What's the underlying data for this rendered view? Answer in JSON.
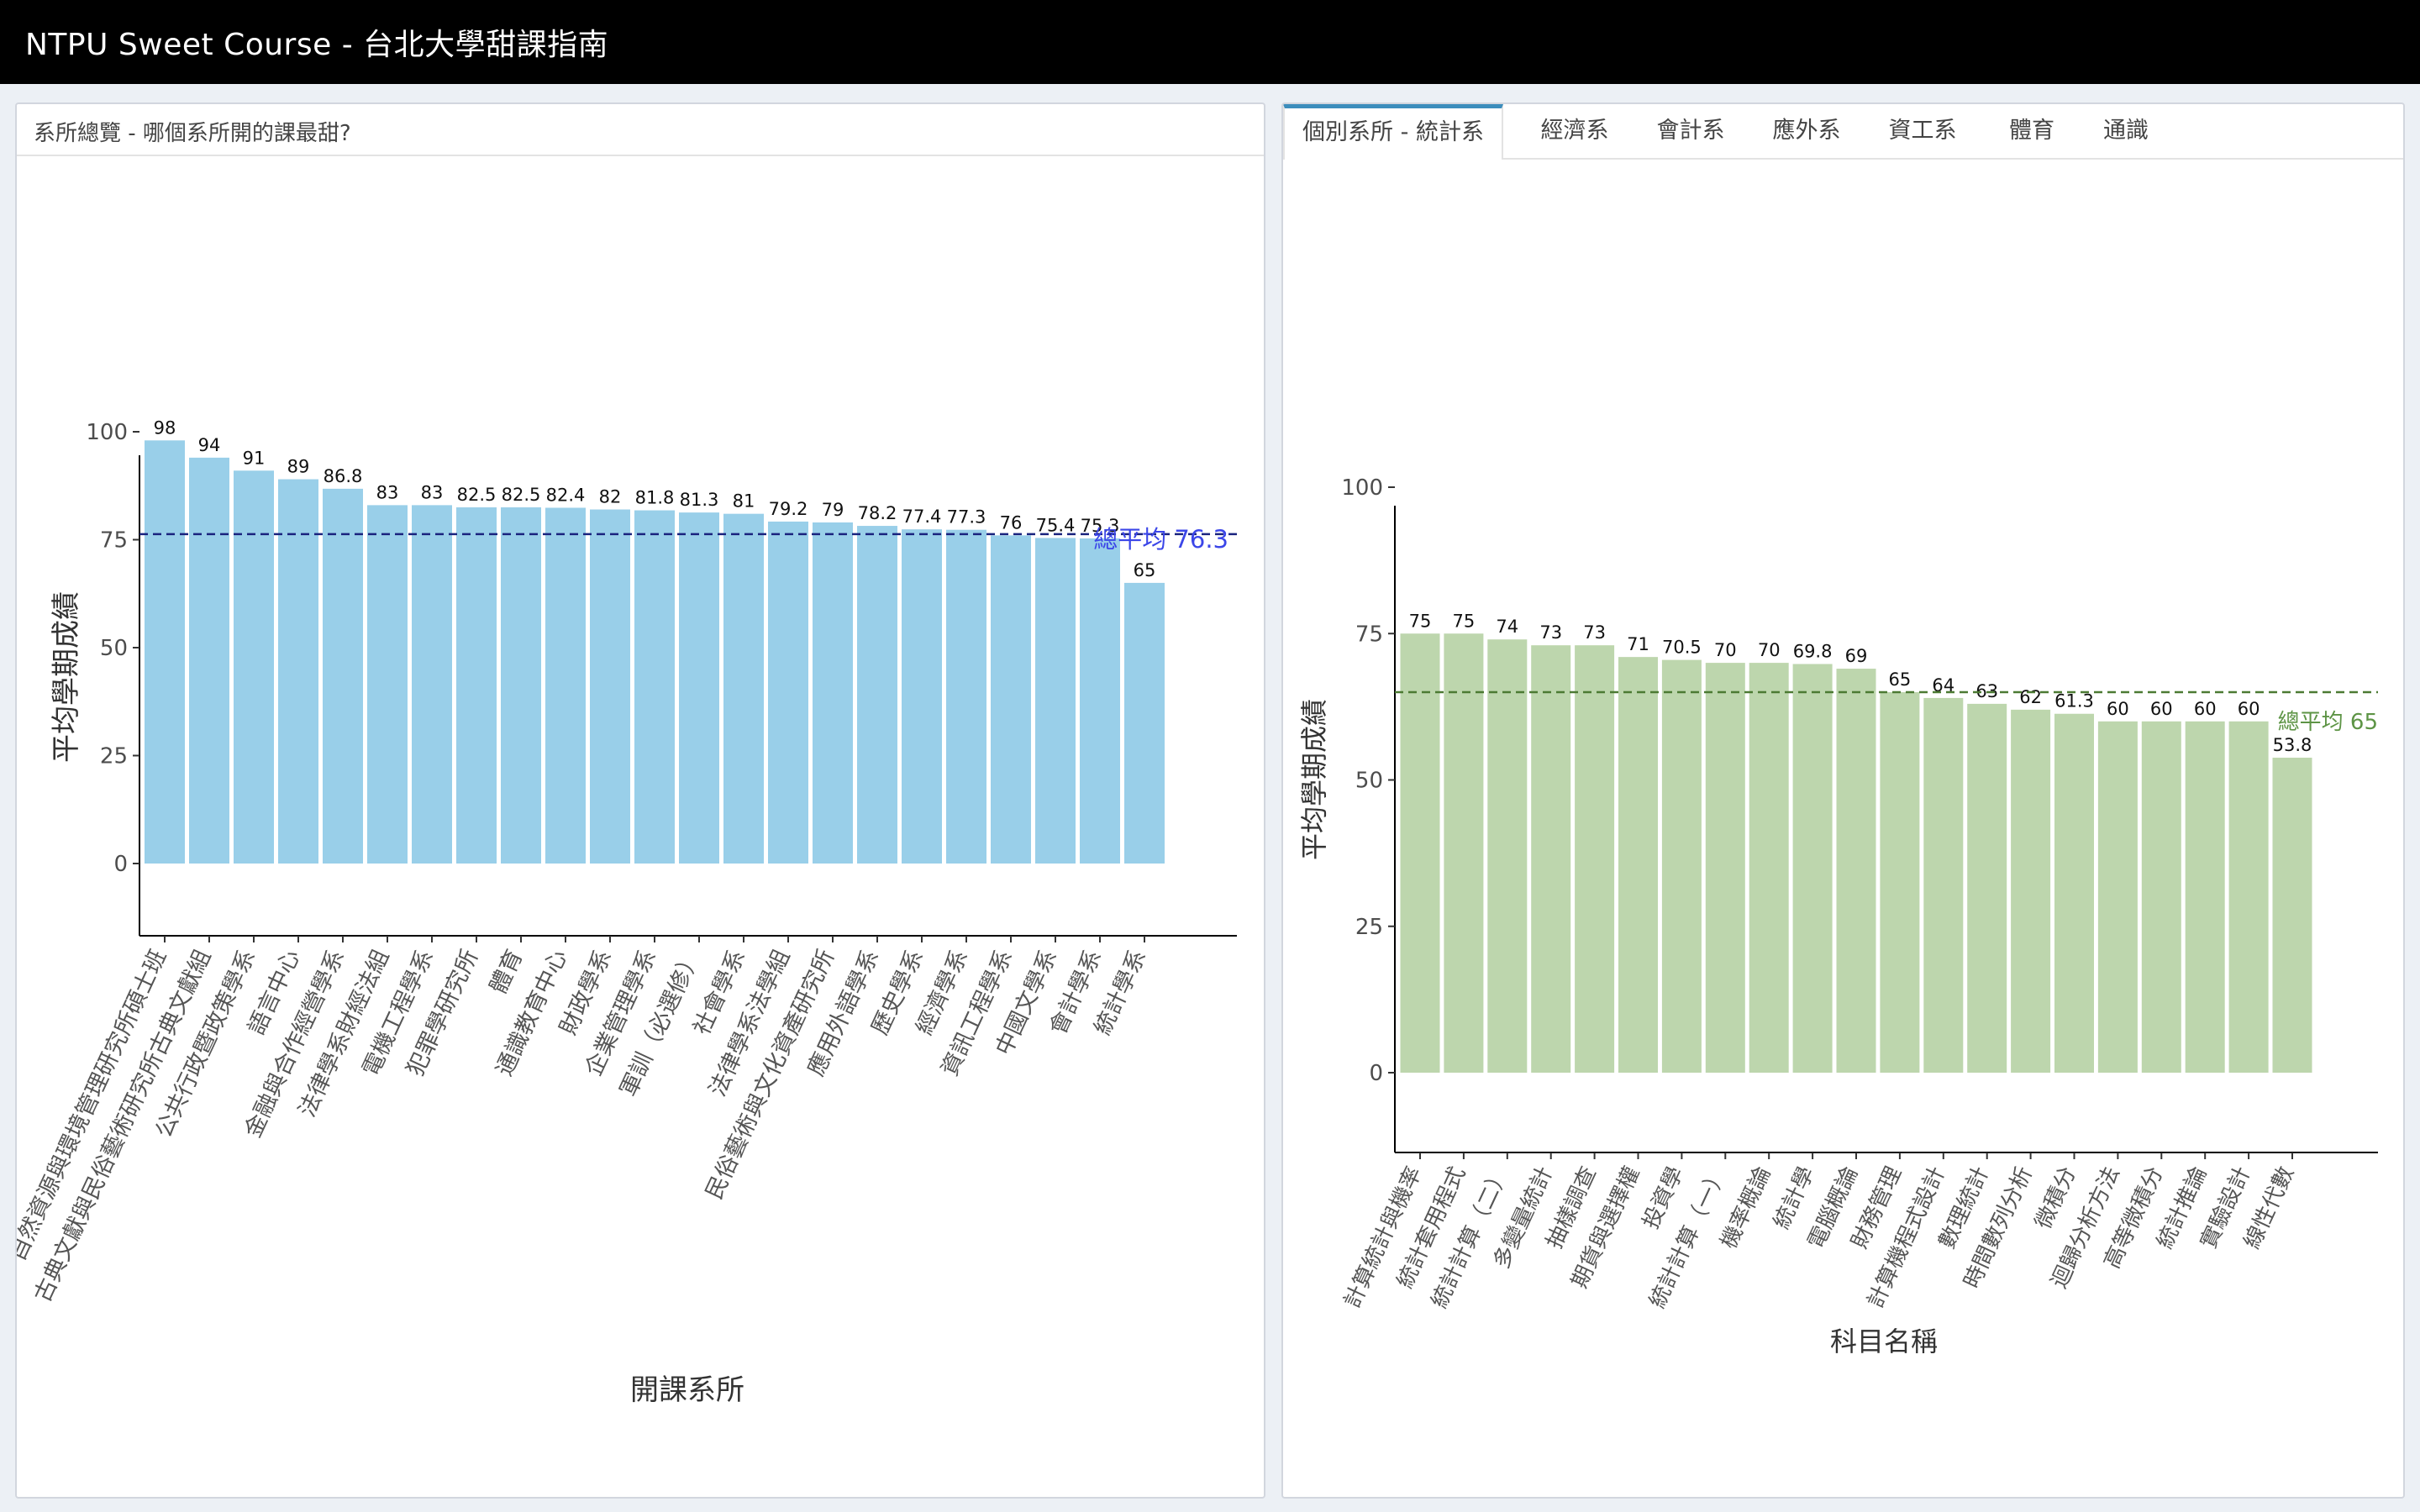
{
  "app": {
    "title": "NTPU Sweet Course - 台北大學甜課指南"
  },
  "left_panel": {
    "header": "系所總覽 - 哪個系所開的課最甜?"
  },
  "right_panel": {
    "tabs": [
      {
        "label": "個別系所 - 統計系",
        "active": true
      },
      {
        "label": "經濟系",
        "active": false
      },
      {
        "label": "會計系",
        "active": false
      },
      {
        "label": "應外系",
        "active": false
      },
      {
        "label": "資工系",
        "active": false
      },
      {
        "label": "體育",
        "active": false
      },
      {
        "label": "通識",
        "active": false
      }
    ]
  },
  "colors": {
    "left_bar": "#99cfe9",
    "right_bar": "#bdd6ad",
    "left_mean_line": "#1a237e",
    "left_mean_label": "#3b46e8",
    "right_mean_line": "#4c7a33",
    "right_mean_label": "#5d9445"
  },
  "chart_data": [
    {
      "type": "bar",
      "xlabel": "開課系所",
      "ylabel": "平均學期成績",
      "ylim": [
        0,
        100
      ],
      "yticks": [
        0,
        25,
        50,
        75,
        100
      ],
      "mean_label": "總平均 76.3",
      "mean_value": 76.3,
      "categories": [
        "自然資源與環境管理研究所碩士班",
        "古典文獻與民俗藝術研究所古典文獻組",
        "公共行政暨政策學系",
        "語言中心",
        "金融與合作經營學系",
        "法律學系財經法組",
        "電機工程學系",
        "犯罪學研究所",
        "體育",
        "通識教育中心",
        "財政學系",
        "企業管理學系",
        "軍訓（必選修）",
        "社會學系",
        "法律學系法學組",
        "民俗藝術與文化資產研究所",
        "應用外語學系",
        "歷史學系",
        "經濟學系",
        "資訊工程學系",
        "中國文學系",
        "會計學系",
        "統計學系"
      ],
      "values": [
        98,
        94,
        91,
        89,
        86.8,
        83,
        83,
        82.5,
        82.5,
        82.4,
        82,
        81.8,
        81.3,
        81,
        79.2,
        79,
        78.2,
        77.4,
        77.3,
        76,
        75.4,
        75.3,
        65
      ],
      "value_labels": [
        "98",
        "94",
        "91",
        "89",
        "86.8",
        "83",
        "83",
        "82.5",
        "82.5",
        "82.4",
        "82",
        "81.8",
        "81.3",
        "81",
        "79.2",
        "79",
        "78.2",
        "77.4",
        "77.3",
        "76",
        "75.4",
        "75.3",
        "65"
      ]
    },
    {
      "type": "bar",
      "xlabel": "科目名稱",
      "ylabel": "平均學期成績",
      "ylim": [
        0,
        100
      ],
      "yticks": [
        0,
        25,
        50,
        75,
        100
      ],
      "mean_label": "總平均 65",
      "mean_value": 65,
      "categories": [
        "計算統計與機率",
        "統計套用程式",
        "統計計算（二）",
        "多變量統計",
        "抽樣調查",
        "期貨與選擇權",
        "投資學",
        "統計計算（一）",
        "機率概論",
        "統計學",
        "電腦概論",
        "財務管理",
        "計算機程式設計",
        "數理統計",
        "時間數列分析",
        "微積分",
        "迴歸分析方法",
        "高等微積分",
        "統計推論",
        "實驗設計",
        "線性代數"
      ],
      "values": [
        75,
        75,
        74,
        73,
        73,
        71,
        70.5,
        70,
        70,
        69.8,
        69,
        65,
        64,
        63,
        62,
        61.3,
        60,
        60,
        60,
        60,
        53.8
      ],
      "value_labels": [
        "75",
        "75",
        "74",
        "73",
        "73",
        "71",
        "70.5",
        "70",
        "70",
        "69.8",
        "69",
        "65",
        "64",
        "63",
        "62",
        "61.3",
        "60",
        "60",
        "60",
        "60",
        "53.8"
      ]
    }
  ]
}
